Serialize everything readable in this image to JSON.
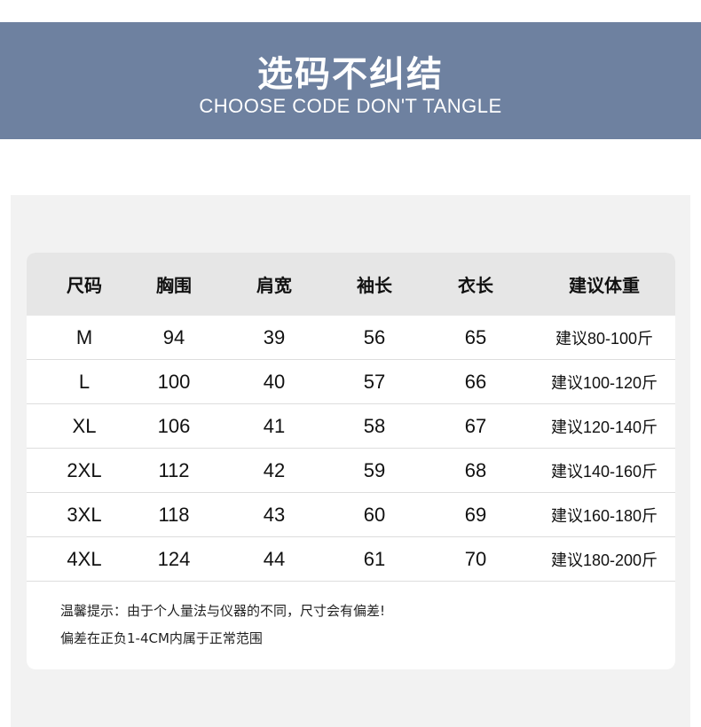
{
  "banner": {
    "title": "选码不纠结",
    "subtitle": "CHOOSE CODE DON'T TANGLE",
    "color": "#6e81a0"
  },
  "table": {
    "headers": [
      "尺码",
      "胸围",
      "肩宽",
      "袖长",
      "衣长",
      "建议体重"
    ],
    "rows": [
      [
        "M",
        "94",
        "39",
        "56",
        "65",
        "建议80-100斤"
      ],
      [
        "L",
        "100",
        "40",
        "57",
        "66",
        "建议100-120斤"
      ],
      [
        "XL",
        "106",
        "41",
        "58",
        "67",
        "建议120-140斤"
      ],
      [
        "2XL",
        "112",
        "42",
        "59",
        "68",
        "建议140-160斤"
      ],
      [
        "3XL",
        "118",
        "43",
        "60",
        "69",
        "建议160-180斤"
      ],
      [
        "4XL",
        "124",
        "44",
        "61",
        "70",
        "建议180-200斤"
      ]
    ]
  },
  "notes": [
    "温馨提示：由于个人量法与仪器的不同，尺寸会有偏差!",
    "偏差在正负1-4CM内属于正常范围"
  ]
}
